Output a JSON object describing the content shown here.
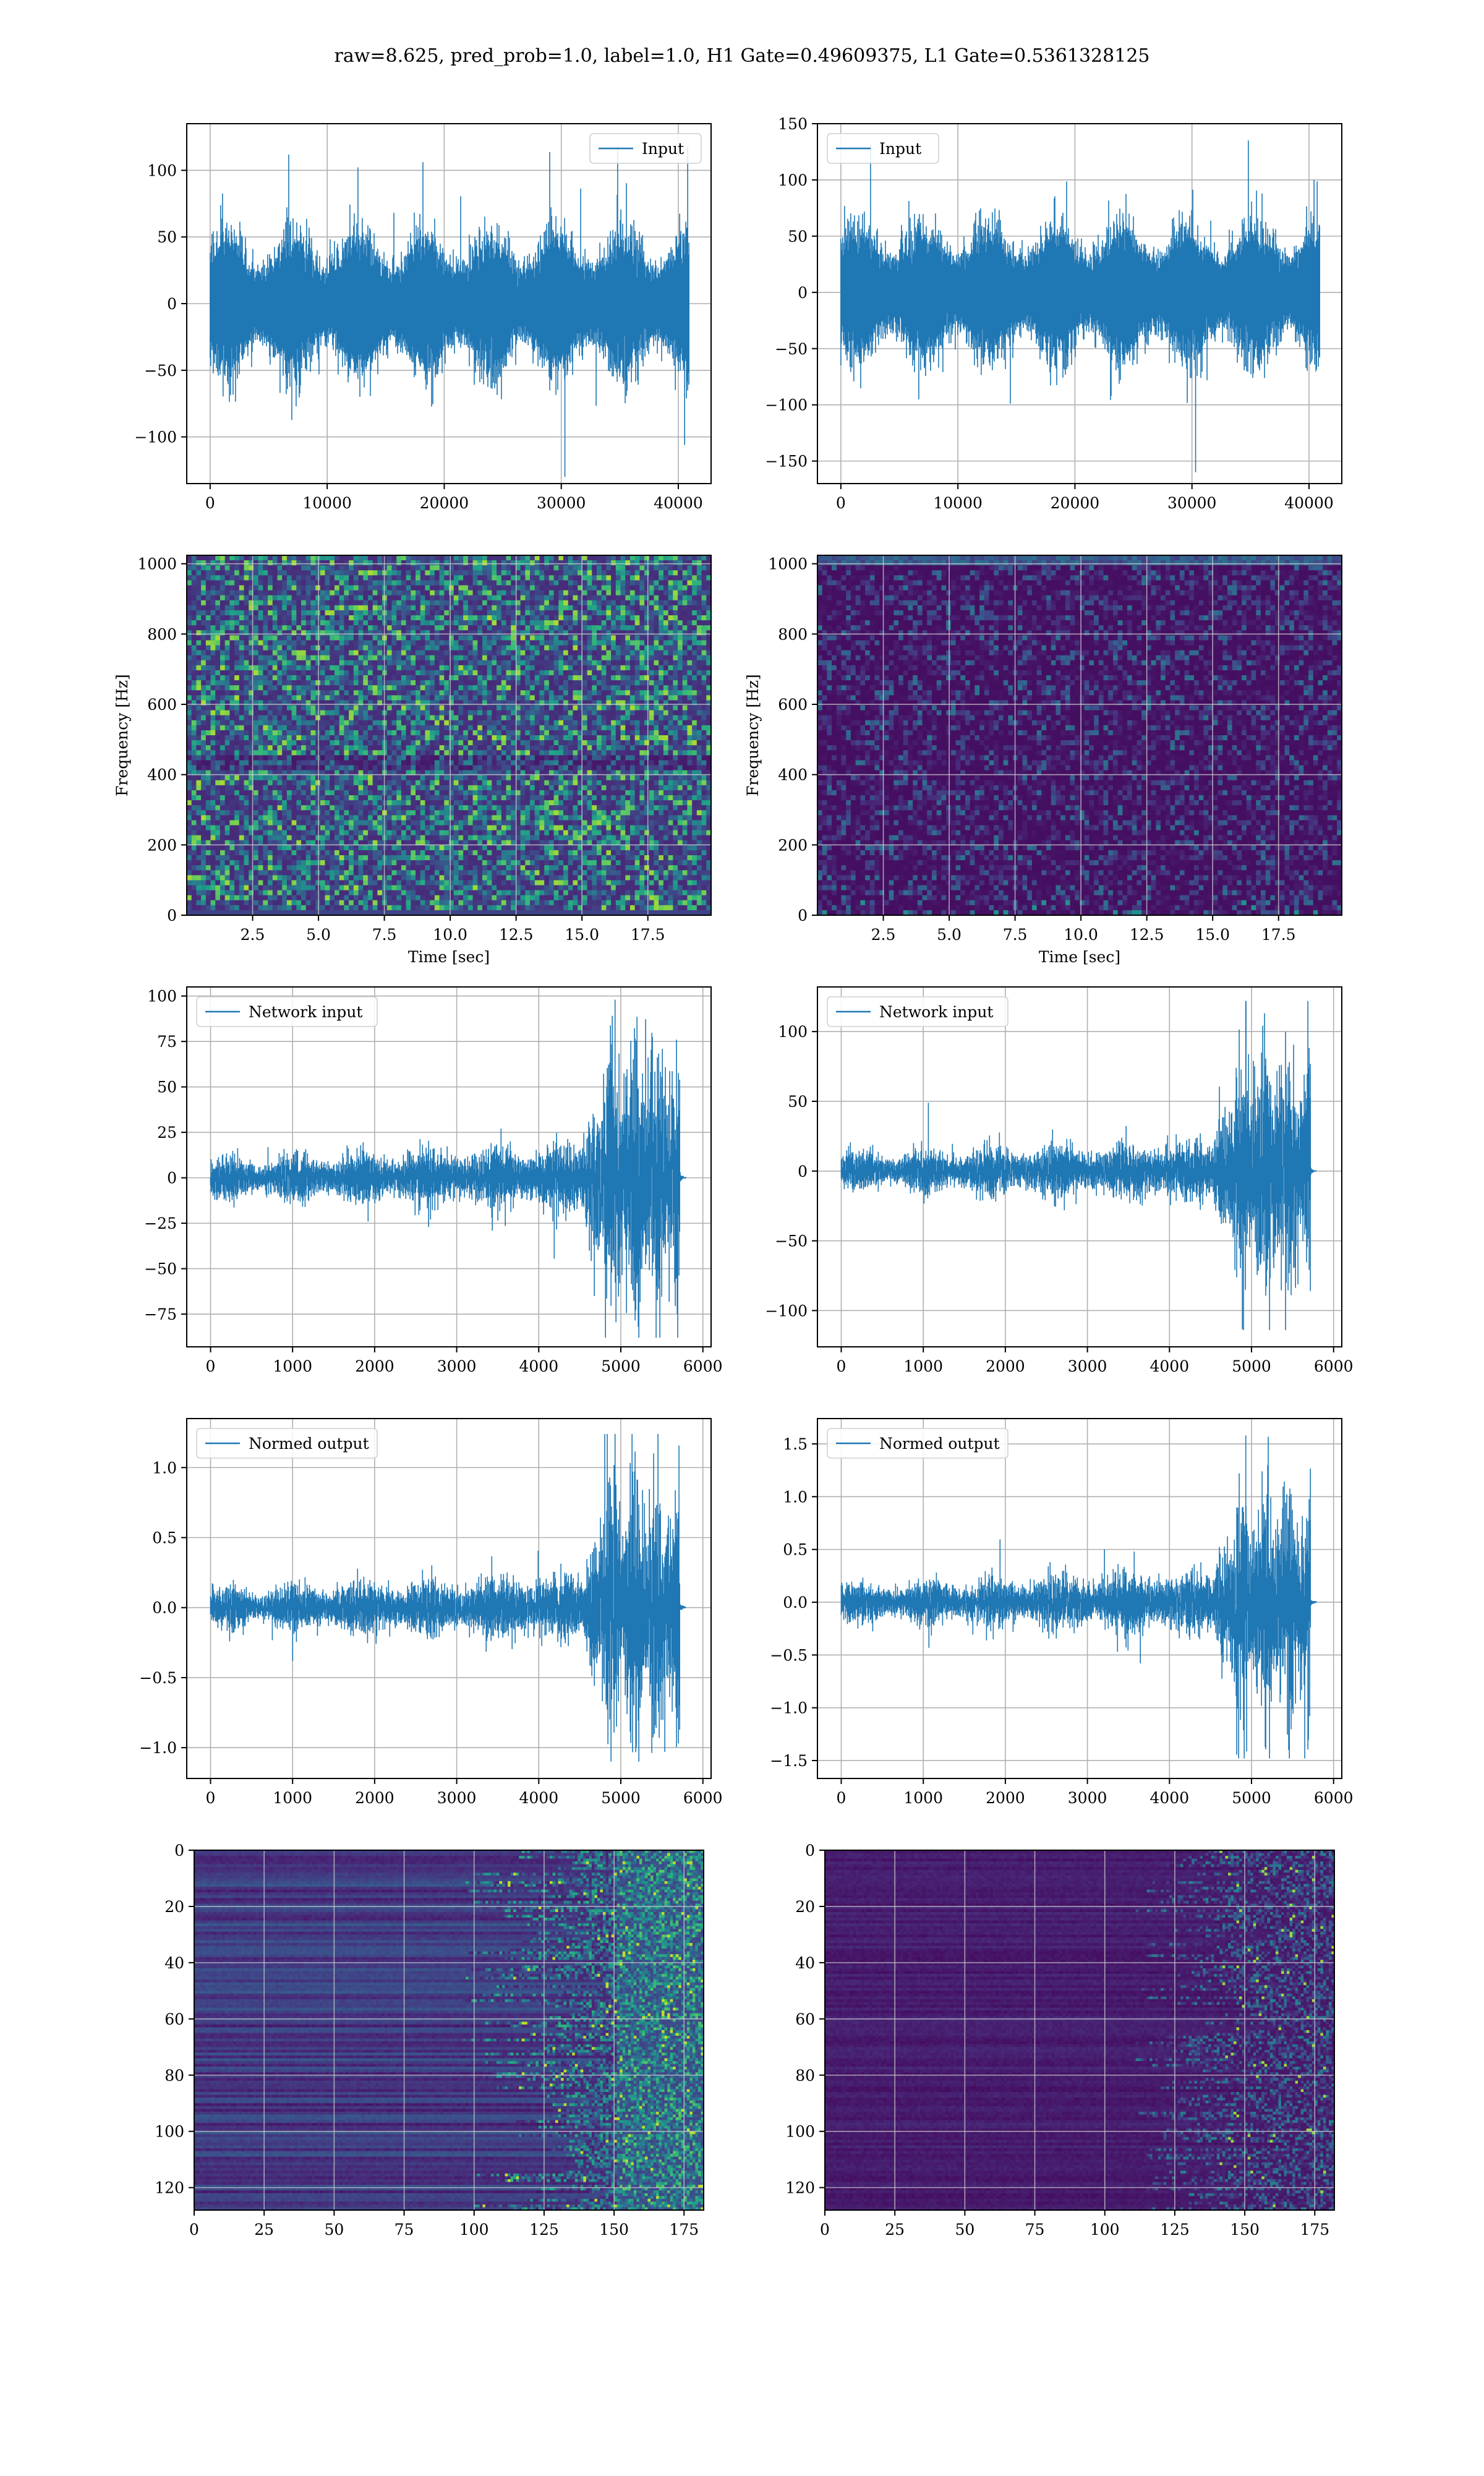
{
  "figure": {
    "suptitle": "raw=8.625, pred_prob=1.0, label=1.0, H1 Gate=0.49609375, L1 Gate=0.5361328125"
  },
  "colors": {
    "line": "#1f77b4",
    "grid": "#b0b0b0",
    "axes": "#000000",
    "colormap": "viridis"
  },
  "chart_data": [
    {
      "type": "line",
      "row": 0,
      "col": 0,
      "legend": "Input",
      "legend_loc": "upper right",
      "xlim": [
        -2000,
        42800
      ],
      "ylim": [
        -135,
        135
      ],
      "xticks": [
        0,
        10000,
        20000,
        30000,
        40000
      ],
      "yticks": [
        -100,
        -50,
        0,
        50,
        100
      ],
      "signal": {
        "kind": "noise",
        "n": 40960,
        "amplitude": 40,
        "peak": 118,
        "spike_min": -130
      }
    },
    {
      "type": "line",
      "row": 0,
      "col": 1,
      "legend": "Input",
      "legend_loc": "upper left",
      "xlim": [
        -2000,
        42800
      ],
      "ylim": [
        -170,
        150
      ],
      "xticks": [
        0,
        10000,
        20000,
        30000,
        40000
      ],
      "yticks": [
        -150,
        -100,
        -50,
        0,
        50,
        100,
        150
      ],
      "signal": {
        "kind": "noise",
        "n": 40960,
        "amplitude": 45,
        "peak": 135,
        "spike_min": -160
      }
    },
    {
      "type": "heatmap",
      "row": 1,
      "col": 0,
      "xlabel": "Time [sec]",
      "ylabel": "Frequency [Hz]",
      "xlim": [
        0,
        19.9
      ],
      "ylim": [
        0,
        1024
      ],
      "xticks": [
        2.5,
        5.0,
        7.5,
        10.0,
        12.5,
        15.0,
        17.5
      ],
      "yticks": [
        0,
        200,
        400,
        600,
        800,
        1000
      ],
      "texture": "broadband-noise"
    },
    {
      "type": "heatmap",
      "row": 1,
      "col": 1,
      "xlabel": "Time [sec]",
      "ylabel": "Frequency [Hz]",
      "xlim": [
        0,
        19.9
      ],
      "ylim": [
        0,
        1024
      ],
      "xticks": [
        2.5,
        5.0,
        7.5,
        10.0,
        12.5,
        15.0,
        17.5
      ],
      "yticks": [
        0,
        200,
        400,
        600,
        800,
        1000
      ],
      "texture": "dark-with-line-at-1000hz"
    },
    {
      "type": "line",
      "row": 2,
      "col": 0,
      "legend": "Network input",
      "legend_loc": "upper left",
      "xlim": [
        -290,
        6100
      ],
      "ylim": [
        -93,
        105
      ],
      "xticks": [
        0,
        1000,
        2000,
        3000,
        4000,
        5000,
        6000
      ],
      "yticks": [
        -75,
        -50,
        -25,
        0,
        25,
        50,
        75,
        100
      ],
      "signal": {
        "kind": "chirp",
        "n": 5800,
        "active_end": 5720,
        "base_amp": 10,
        "burst_start": 4500,
        "burst_amp": 60,
        "peak": 98,
        "trough": -88
      }
    },
    {
      "type": "line",
      "row": 2,
      "col": 1,
      "legend": "Network input",
      "legend_loc": "upper left",
      "xlim": [
        -290,
        6100
      ],
      "ylim": [
        -126,
        132
      ],
      "xticks": [
        0,
        1000,
        2000,
        3000,
        4000,
        5000,
        6000
      ],
      "yticks": [
        -100,
        -50,
        0,
        50,
        100
      ],
      "signal": {
        "kind": "chirp",
        "n": 5800,
        "active_end": 5720,
        "base_amp": 12,
        "burst_start": 4500,
        "burst_amp": 65,
        "peak": 122,
        "trough": -114
      }
    },
    {
      "type": "line",
      "row": 3,
      "col": 0,
      "legend": "Normed output",
      "legend_loc": "upper left",
      "xlim": [
        -290,
        6100
      ],
      "ylim": [
        -1.22,
        1.35
      ],
      "xticks": [
        0,
        1000,
        2000,
        3000,
        4000,
        5000,
        6000
      ],
      "yticks": [
        -1.0,
        -0.5,
        0.0,
        0.5,
        1.0
      ],
      "signal": {
        "kind": "chirp",
        "n": 5800,
        "active_end": 5720,
        "base_amp": 0.13,
        "burst_start": 4500,
        "burst_amp": 0.75,
        "peak": 1.24,
        "trough": -1.1
      }
    },
    {
      "type": "line",
      "row": 3,
      "col": 1,
      "legend": "Normed output",
      "legend_loc": "upper left",
      "xlim": [
        -290,
        6100
      ],
      "ylim": [
        -1.67,
        1.74
      ],
      "xticks": [
        0,
        1000,
        2000,
        3000,
        4000,
        5000,
        6000
      ],
      "yticks": [
        -1.5,
        -1.0,
        -0.5,
        0.0,
        0.5,
        1.0,
        1.5
      ],
      "signal": {
        "kind": "chirp",
        "n": 5800,
        "active_end": 5720,
        "base_amp": 0.16,
        "burst_start": 4500,
        "burst_amp": 0.85,
        "peak": 1.58,
        "trough": -1.48
      }
    },
    {
      "type": "heatmap",
      "row": 4,
      "col": 0,
      "xlabel": "",
      "ylabel": "",
      "xlim": [
        0,
        182
      ],
      "ylim": [
        128,
        0
      ],
      "xticks": [
        0,
        25,
        50,
        75,
        100,
        125,
        150,
        175
      ],
      "yticks": [
        0,
        20,
        40,
        60,
        80,
        100,
        120
      ],
      "texture": "feature-map-banded"
    },
    {
      "type": "heatmap",
      "row": 4,
      "col": 1,
      "xlabel": "",
      "ylabel": "",
      "xlim": [
        0,
        182
      ],
      "ylim": [
        128,
        0
      ],
      "xticks": [
        0,
        25,
        50,
        75,
        100,
        125,
        150,
        175
      ],
      "yticks": [
        0,
        20,
        40,
        60,
        80,
        100,
        120
      ],
      "texture": "feature-map-dark"
    }
  ]
}
